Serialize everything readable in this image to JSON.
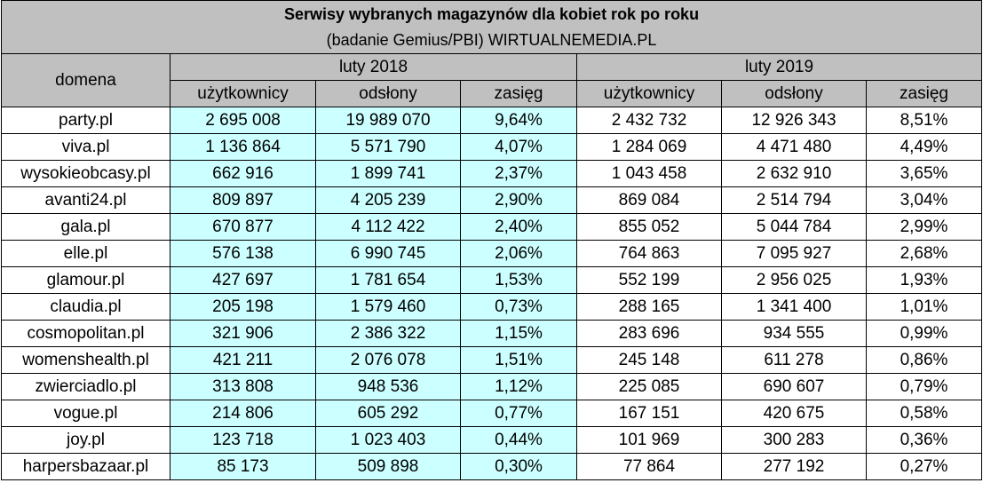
{
  "chart_data": {
    "type": "table",
    "title": "Serwisy wybranych magazynów dla kobiet rok po roku",
    "subtitle": "(badanie Gemius/PBI) WIRTUALNEMEDIA.PL",
    "domain_header": "domena",
    "periods": [
      "luty 2018",
      "luty 2019"
    ],
    "columns": [
      "użytkownicy",
      "odsłony",
      "zasięg"
    ],
    "highlight_color": "#ccffff",
    "header_color": "#c0c0c0",
    "rows": [
      {
        "domain": "party.pl",
        "v": [
          "2 695 008",
          "19 989 070",
          "9,64%",
          "2 432 732",
          "12 926 343",
          "8,51%"
        ]
      },
      {
        "domain": "viva.pl",
        "v": [
          "1 136 864",
          "5 571 790",
          "4,07%",
          "1 284 069",
          "4 471 480",
          "4,49%"
        ]
      },
      {
        "domain": "wysokieobcasy.pl",
        "v": [
          "662 916",
          "1 899 741",
          "2,37%",
          "1 043 458",
          "2 632 910",
          "3,65%"
        ]
      },
      {
        "domain": "avanti24.pl",
        "v": [
          "809 897",
          "4 205 239",
          "2,90%",
          "869 084",
          "2 514 794",
          "3,04%"
        ]
      },
      {
        "domain": "gala.pl",
        "v": [
          "670 877",
          "4 112 422",
          "2,40%",
          "855 052",
          "5 044 784",
          "2,99%"
        ]
      },
      {
        "domain": "elle.pl",
        "v": [
          "576 138",
          "6 990 745",
          "2,06%",
          "764 863",
          "7 095 927",
          "2,68%"
        ]
      },
      {
        "domain": "glamour.pl",
        "v": [
          "427 697",
          "1 781 654",
          "1,53%",
          "552 199",
          "2 956 025",
          "1,93%"
        ]
      },
      {
        "domain": "claudia.pl",
        "v": [
          "205 198",
          "1 579 460",
          "0,73%",
          "288 165",
          "1 341 400",
          "1,01%"
        ]
      },
      {
        "domain": "cosmopolitan.pl",
        "v": [
          "321 906",
          "2 386 322",
          "1,15%",
          "283 696",
          "934 555",
          "0,99%"
        ]
      },
      {
        "domain": "womenshealth.pl",
        "v": [
          "421 211",
          "2 076 078",
          "1,51%",
          "245 148",
          "611 278",
          "0,86%"
        ]
      },
      {
        "domain": "zwierciadlo.pl",
        "v": [
          "313 808",
          "948 536",
          "1,12%",
          "225 085",
          "690 607",
          "0,79%"
        ]
      },
      {
        "domain": "vogue.pl",
        "v": [
          "214 806",
          "605 292",
          "0,77%",
          "167 151",
          "420 675",
          "0,58%"
        ]
      },
      {
        "domain": "joy.pl",
        "v": [
          "123 718",
          "1 023 403",
          "0,44%",
          "101 969",
          "300 283",
          "0,36%"
        ]
      },
      {
        "domain": "harpersbazaar.pl",
        "v": [
          "85 173",
          "509 898",
          "0,30%",
          "77 864",
          "277 192",
          "0,27%"
        ]
      }
    ]
  }
}
